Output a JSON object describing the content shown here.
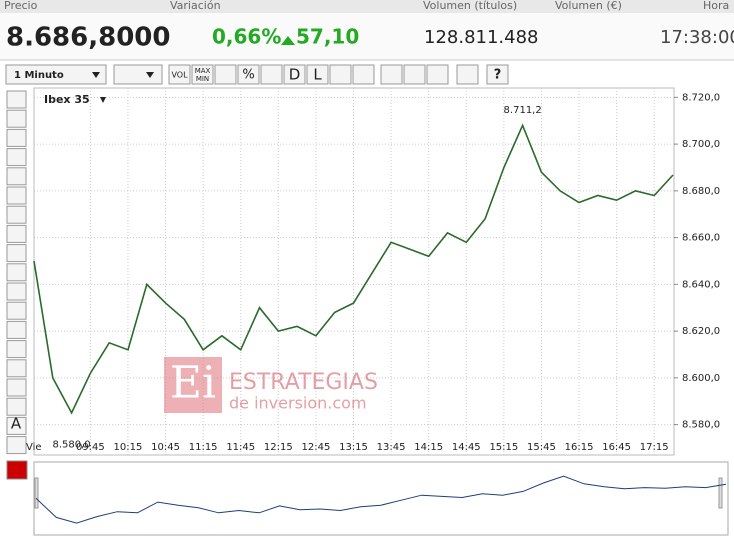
{
  "header": {
    "labels": [
      "Precio",
      "Variación",
      "Volumen (títulos)",
      "Volumen (€)",
      "Hora"
    ],
    "price": "8.686,8000",
    "change_pct": "0,66%",
    "change": "57,10",
    "volume": "128.811.488",
    "time": "17:38:00"
  },
  "toolbar": {
    "interval": "1 Minuto",
    "vol": "VOL",
    "max": "MAX",
    "min": "MIN",
    "pct": "%",
    "d": "D",
    "l": "L",
    "help": "?"
  },
  "side_tools": {
    "text_tool": "A"
  },
  "watermark": {
    "logo": "Ei",
    "line1": "ESTRATEGIAS",
    "line2": "de inversion.com"
  },
  "chart_data": {
    "type": "line",
    "title": "Ibex 35",
    "day_label": "Vie",
    "categories": [
      "09:00",
      "09:15",
      "09:30",
      "09:45",
      "10:00",
      "10:15",
      "10:30",
      "10:45",
      "11:00",
      "11:15",
      "11:30",
      "11:45",
      "12:00",
      "12:15",
      "12:30",
      "12:45",
      "13:00",
      "13:15",
      "13:30",
      "13:45",
      "14:00",
      "14:15",
      "14:30",
      "14:45",
      "15:00",
      "15:15",
      "15:30",
      "15:45",
      "16:00",
      "16:15",
      "16:30",
      "16:45",
      "17:00",
      "17:15",
      "17:30"
    ],
    "xticks": [
      "09:45",
      "10:15",
      "10:45",
      "11:15",
      "11:45",
      "12:15",
      "12:45",
      "13:15",
      "13:45",
      "14:15",
      "14:45",
      "15:15",
      "15:45",
      "16:15",
      "16:45",
      "17:15"
    ],
    "values": [
      8650,
      8600,
      8585,
      8602,
      8615,
      8612,
      8640,
      8632,
      8625,
      8612,
      8618,
      8612,
      8630,
      8620,
      8622,
      8618,
      8628,
      8632,
      8645,
      8658,
      8655,
      8652,
      8662,
      8658,
      8668,
      8690,
      8708,
      8688,
      8680,
      8675,
      8678,
      8676,
      8680,
      8678,
      8686.8
    ],
    "color": "#2a6a2a",
    "nav_color": "#1c3f78",
    "ylim": [
      8567,
      8724
    ],
    "yticks": [
      {
        "value": 8580,
        "label": "8.580,0"
      },
      {
        "value": 8600,
        "label": "8.600,0"
      },
      {
        "value": 8620,
        "label": "8.620,0"
      },
      {
        "value": 8640,
        "label": "8.640,0"
      },
      {
        "value": 8660,
        "label": "8.660,0"
      },
      {
        "value": 8680,
        "label": "8.680,0"
      },
      {
        "value": 8700,
        "label": "8.700,0"
      },
      {
        "value": 8720,
        "label": "8.720,0"
      }
    ],
    "annotations": [
      {
        "value": 8711.2,
        "label": "8.711,2",
        "category": "15:30"
      },
      {
        "value": 8580,
        "label": "8.580,0",
        "category": "09:30"
      }
    ],
    "grid": true
  }
}
